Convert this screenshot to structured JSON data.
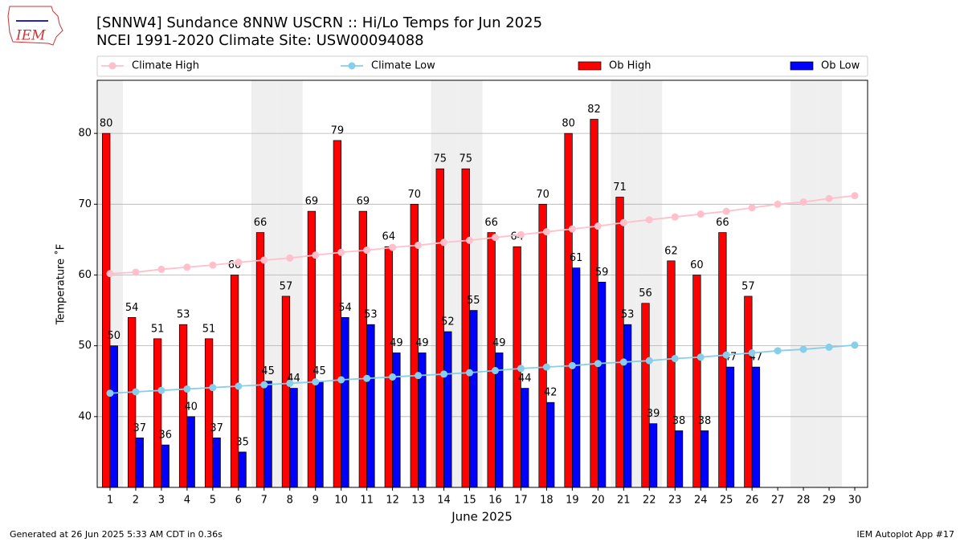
{
  "chart_data": {
    "type": "bar",
    "title": "[SNNW4] Sundance 8NNW USCRN :: Hi/Lo Temps for Jun 2025",
    "subtitle": "NCEI 1991-2020 Climate Site: USW00094088",
    "x_label": "June 2025",
    "y_label": "Temperature ˚F",
    "logo_text": "IEM",
    "footer_left": "Generated at 26 Jun 2025 5:33 AM CDT in 0.36s",
    "footer_right": "IEM Autoplot App #17",
    "x": [
      1,
      2,
      3,
      4,
      5,
      6,
      7,
      8,
      9,
      10,
      11,
      12,
      13,
      14,
      15,
      16,
      17,
      18,
      19,
      20,
      21,
      22,
      23,
      24,
      25,
      26,
      27,
      28,
      29,
      30
    ],
    "shaded_x": [
      1,
      7,
      8,
      14,
      15,
      21,
      22,
      28,
      29
    ],
    "xlim": [
      0.5,
      30.5
    ],
    "ylim": [
      30,
      87.5
    ],
    "yticks": [
      40,
      50,
      60,
      70,
      80
    ],
    "grid": true,
    "series": [
      {
        "name": "Climate High",
        "type": "line",
        "color": "#ffc0cb",
        "values": [
          60.2,
          60.4,
          60.8,
          61.1,
          61.4,
          61.8,
          62.1,
          62.4,
          62.8,
          63.2,
          63.5,
          63.9,
          64.2,
          64.6,
          64.9,
          65.3,
          65.7,
          66.1,
          66.5,
          66.9,
          67.4,
          67.8,
          68.2,
          68.6,
          69.0,
          69.5,
          70.0,
          70.3,
          70.8,
          71.2
        ]
      },
      {
        "name": "Climate Low",
        "type": "line",
        "color": "#87ceeb",
        "values": [
          43.3,
          43.5,
          43.7,
          43.9,
          44.1,
          44.3,
          44.5,
          44.7,
          44.9,
          45.2,
          45.4,
          45.6,
          45.8,
          46.0,
          46.2,
          46.5,
          46.8,
          47.0,
          47.2,
          47.5,
          47.7,
          47.9,
          48.2,
          48.4,
          48.7,
          49.0,
          49.3,
          49.5,
          49.8,
          50.1
        ]
      },
      {
        "name": "Ob High",
        "type": "bar",
        "color": "#ff0000",
        "values": [
          80,
          54,
          51,
          53,
          51,
          60,
          66,
          57,
          69,
          79,
          69,
          64,
          70,
          75,
          75,
          66,
          64,
          70,
          80,
          82,
          71,
          56,
          62,
          60,
          66,
          57,
          null,
          null,
          null,
          null
        ]
      },
      {
        "name": "Ob Low",
        "type": "bar",
        "color": "#0000ff",
        "values": [
          50,
          37,
          36,
          40,
          37,
          35,
          45,
          44,
          45,
          54,
          53,
          49,
          49,
          52,
          55,
          49,
          44,
          42,
          61,
          59,
          53,
          39,
          38,
          38,
          47,
          47,
          null,
          null,
          null,
          null
        ]
      }
    ]
  }
}
